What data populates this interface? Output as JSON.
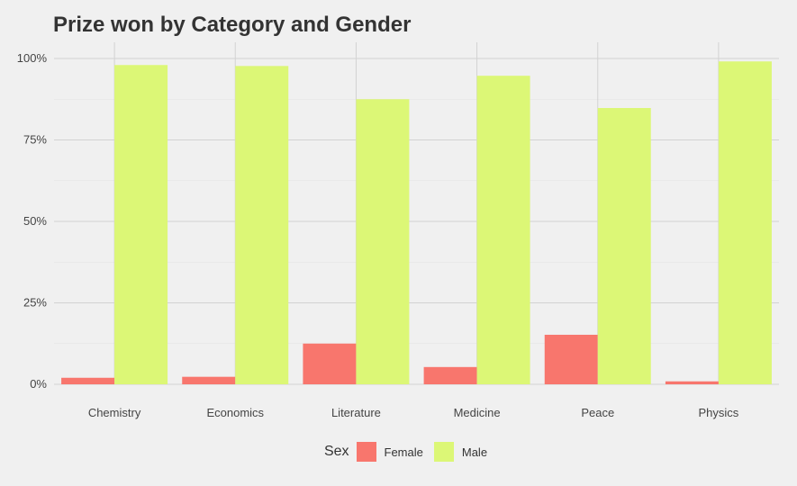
{
  "chart_data": {
    "type": "bar",
    "title": "Prize won by Category and Gender",
    "xlabel": "",
    "ylabel": "",
    "categories": [
      "Chemistry",
      "Economics",
      "Literature",
      "Medicine",
      "Peace",
      "Physics"
    ],
    "series": [
      {
        "name": "Female",
        "color": "#f8766d",
        "values": [
          2.0,
          2.3,
          12.5,
          5.3,
          15.2,
          0.9
        ]
      },
      {
        "name": "Male",
        "color": "#dcf776",
        "values": [
          98.0,
          97.7,
          87.5,
          94.7,
          84.8,
          99.1
        ]
      }
    ],
    "ylim": [
      0,
      100
    ],
    "yticks": [
      "0%",
      "25%",
      "50%",
      "75%",
      "100%"
    ],
    "ytick_values": [
      0,
      25,
      50,
      75,
      100
    ],
    "legend_title": "Sex",
    "legend_position": "bottom",
    "grid": true
  }
}
